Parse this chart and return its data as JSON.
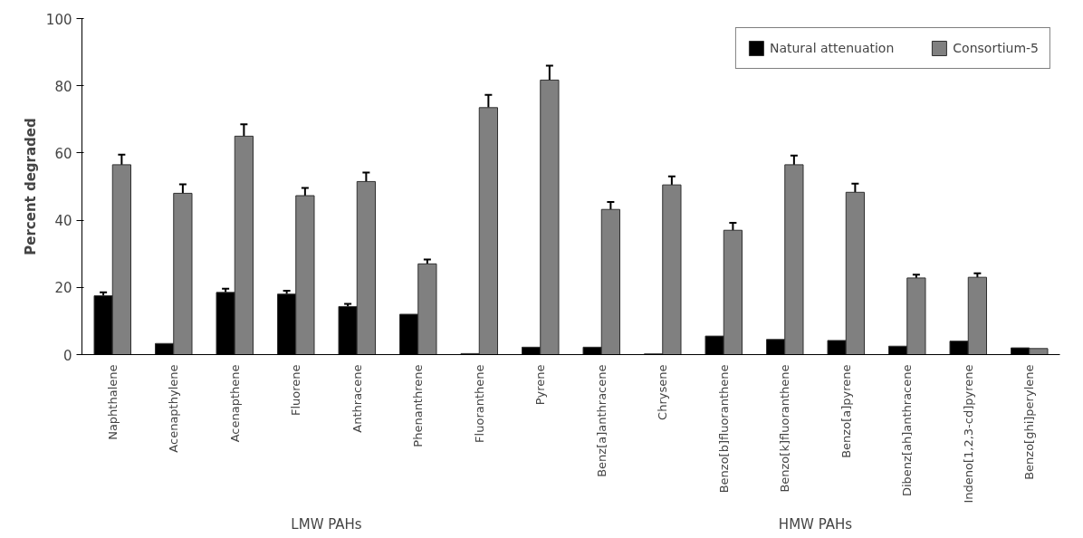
{
  "chart_data": {
    "type": "bar",
    "ylabel": "Percent degraded",
    "categories": [
      "Naphthalene",
      "Acenapthylene",
      "Acenapthene",
      "Fluorene",
      "Anthracene",
      "Phenanthrene",
      "Fluoranthene",
      "Pyrene",
      "Benz[a]anthracene",
      "Chrysene",
      "Benzo[b]fluoranthene",
      "Benzo[k]fluoranthene",
      "Benzo[a]pyrene",
      "Dibenz[ah]anthracene",
      "Indeno[1,2,3-cd]pyrene",
      "Benzo[ghi]perylene"
    ],
    "series": [
      {
        "name": "Natural attenuation",
        "color": "#000000",
        "values": [
          17.5,
          3.3,
          18.5,
          18,
          14.3,
          12,
          0.3,
          2.2,
          2.2,
          0.2,
          5.5,
          4.5,
          4.2,
          2.5,
          4,
          2
        ],
        "errors": [
          1,
          null,
          1.1,
          1,
          0.8,
          null,
          null,
          null,
          null,
          null,
          null,
          null,
          null,
          null,
          null,
          null
        ]
      },
      {
        "name": "Consortium-5",
        "color": "#808080",
        "values": [
          56.5,
          48,
          65,
          47.3,
          51.5,
          27,
          73.5,
          81.7,
          43.2,
          50.5,
          37,
          56.5,
          48.3,
          22.8,
          23,
          1.8
        ],
        "errors": [
          3,
          2.7,
          3.5,
          2.3,
          2.7,
          1.3,
          3.8,
          4.3,
          2.2,
          2.5,
          2.2,
          2.7,
          2.6,
          1,
          1.2,
          null
        ]
      }
    ],
    "annotations": [
      "LMW PAHs",
      "HMW PAHs"
    ],
    "ylim": [
      0,
      100
    ],
    "yticks": [
      0,
      20,
      40,
      60,
      80,
      100
    ],
    "grid": false,
    "legend": "top right"
  }
}
